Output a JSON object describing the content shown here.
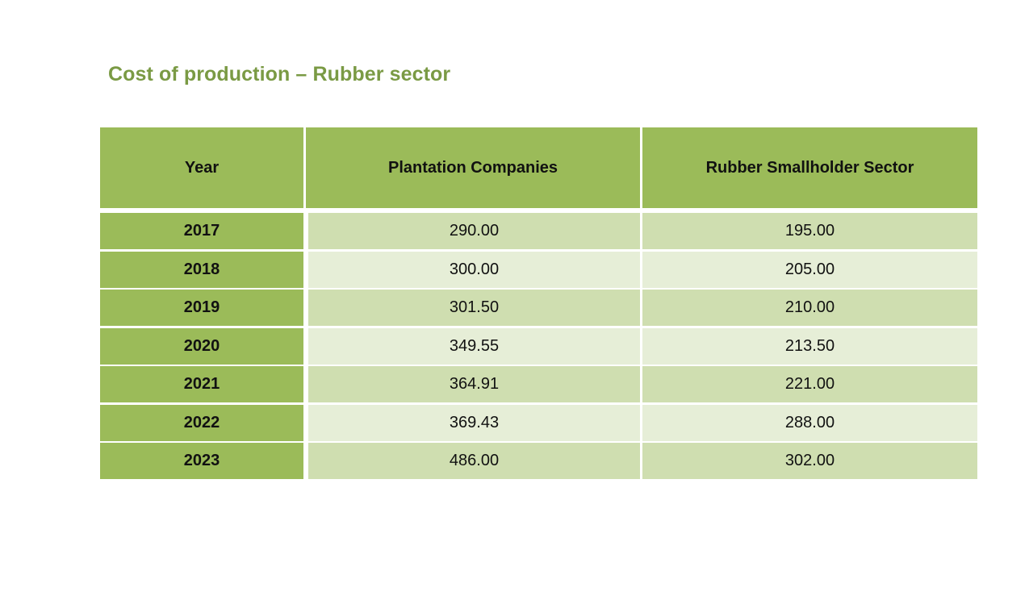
{
  "title": "Cost of production – Rubber sector",
  "table": {
    "headers": {
      "year": "Year",
      "plantation": "Plantation Companies",
      "smallholder": "Rubber Smallholder Sector"
    },
    "rows": [
      {
        "year": "2017",
        "plantation": "290.00",
        "smallholder": "195.00"
      },
      {
        "year": "2018",
        "plantation": "300.00",
        "smallholder": "205.00"
      },
      {
        "year": "2019",
        "plantation": "301.50",
        "smallholder": "210.00"
      },
      {
        "year": "2020",
        "plantation": "349.55",
        "smallholder": "213.50"
      },
      {
        "year": "2021",
        "plantation": "364.91",
        "smallholder": "221.00"
      },
      {
        "year": "2022",
        "plantation": "369.43",
        "smallholder": "288.00"
      },
      {
        "year": "2023",
        "plantation": "486.00",
        "smallholder": "302.00"
      }
    ]
  },
  "colors": {
    "title": "#7a9a44",
    "header_fill": "#9bbb59",
    "row_band_dark": "#cfdeb0",
    "row_band_light": "#e6eed7"
  }
}
